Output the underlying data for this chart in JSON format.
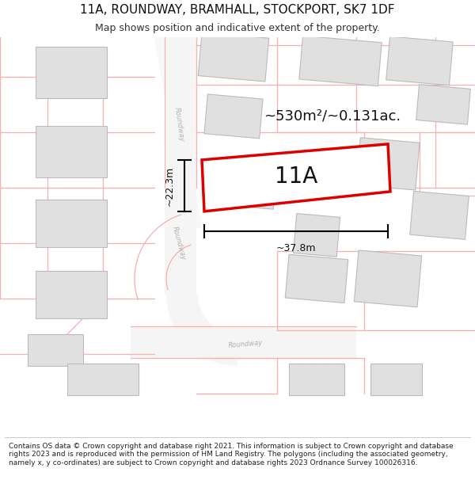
{
  "title": "11A, ROUNDWAY, BRAMHALL, STOCKPORT, SK7 1DF",
  "subtitle": "Map shows position and indicative extent of the property.",
  "area_text": "~530m²/~0.131ac.",
  "label_11a": "11A",
  "width_label": "~37.8m",
  "height_label": "~22.3m",
  "footer": "Contains OS data © Crown copyright and database right 2021. This information is subject to Crown copyright and database rights 2023 and is reproduced with the permission of HM Land Registry. The polygons (including the associated geometry, namely x, y co-ordinates) are subject to Crown copyright and database rights 2023 Ordnance Survey 100026316.",
  "bg_color": "#ffffff",
  "map_bg": "#ffffff",
  "building_color": "#e0e0e0",
  "building_edge": "#bbbbbb",
  "plot_edge_color": "#dd0000",
  "dim_line_color": "#000000",
  "road_label_color": "#b0b0b0",
  "pink_line": "#f5b0b0",
  "title_fontsize": 11,
  "subtitle_fontsize": 9,
  "footer_fontsize": 6.5,
  "road_fill": "#f5f5f5",
  "road_stroke": "#e0c8c8"
}
